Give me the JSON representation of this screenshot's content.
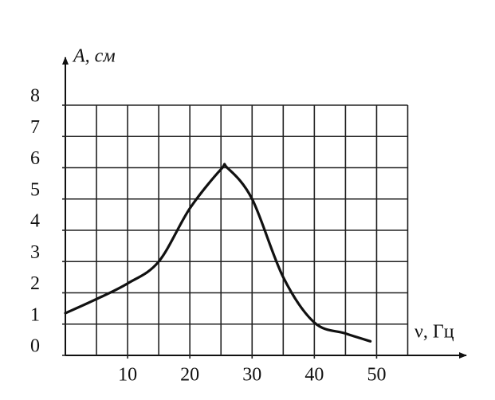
{
  "chart_data": {
    "type": "line",
    "y_label": "A, см",
    "x_label": "ν, Гц",
    "x": [
      0,
      5,
      10,
      15,
      20,
      25,
      26,
      30,
      35,
      40,
      45,
      49
    ],
    "series": [
      {
        "name": "A",
        "color": "#111111",
        "values": [
          1.35,
          1.8,
          2.3,
          3.0,
          4.7,
          5.95,
          6.0,
          5.0,
          2.5,
          1.05,
          0.7,
          0.45
        ]
      }
    ],
    "xlim": [
      0,
      55
    ],
    "ylim": [
      0,
      8
    ],
    "xticks": [
      10,
      20,
      30,
      40,
      50
    ],
    "yticks": [
      0,
      1,
      2,
      3,
      4,
      5,
      6,
      7,
      8
    ],
    "grid": true,
    "x_grid_step": 5,
    "y_grid_step": 1
  }
}
